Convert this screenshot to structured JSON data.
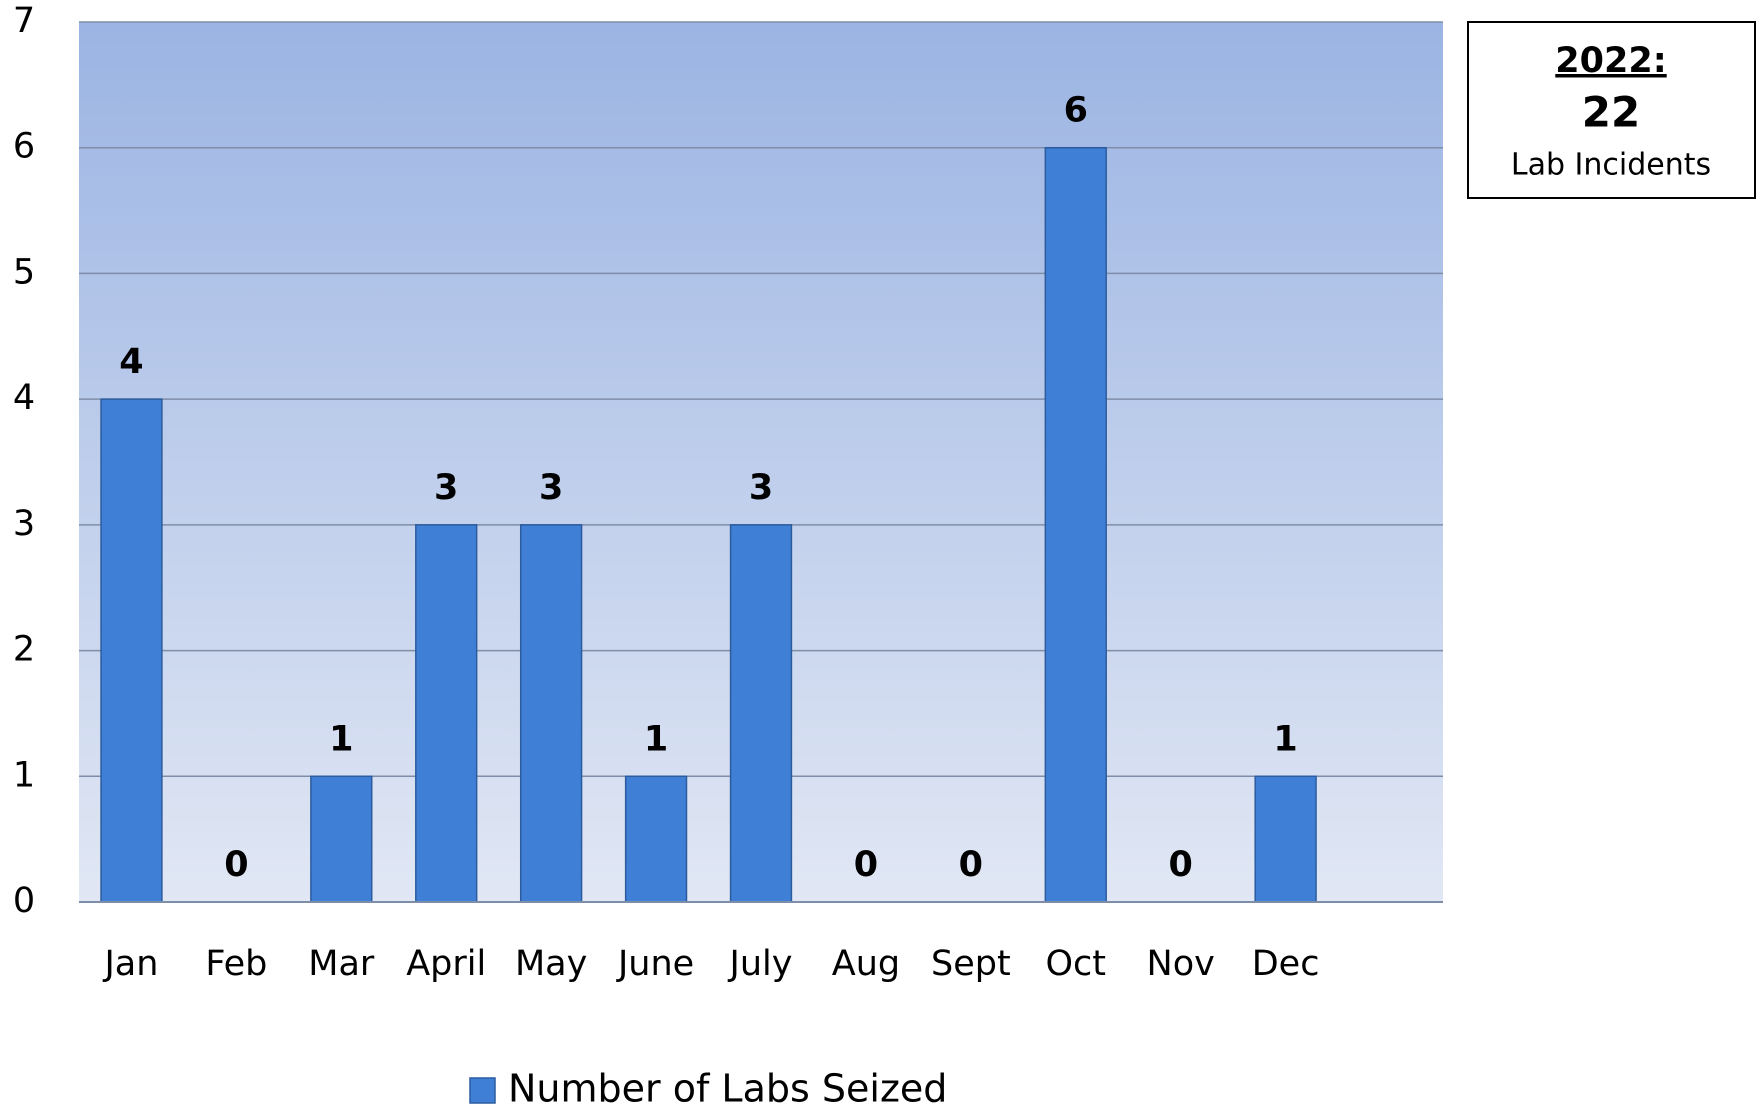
{
  "chart_data": {
    "type": "bar",
    "categories": [
      "Jan",
      "Feb",
      "Mar",
      "April",
      "May",
      "June",
      "July",
      "Aug",
      "Sept",
      "Oct",
      "Nov",
      "Dec"
    ],
    "series": [
      {
        "name": "Number of Labs Seized",
        "color": "#3f7fd6",
        "values": [
          4,
          0,
          1,
          3,
          3,
          1,
          3,
          0,
          0,
          6,
          0,
          1
        ]
      }
    ],
    "ylim": [
      0,
      7
    ],
    "yticks": [
      0,
      1,
      2,
      3,
      4,
      5,
      6,
      7
    ],
    "grid": true,
    "legend": "bottom",
    "annotation": {
      "heading": "2022:",
      "total": 22,
      "caption": "Lab Incidents"
    }
  }
}
